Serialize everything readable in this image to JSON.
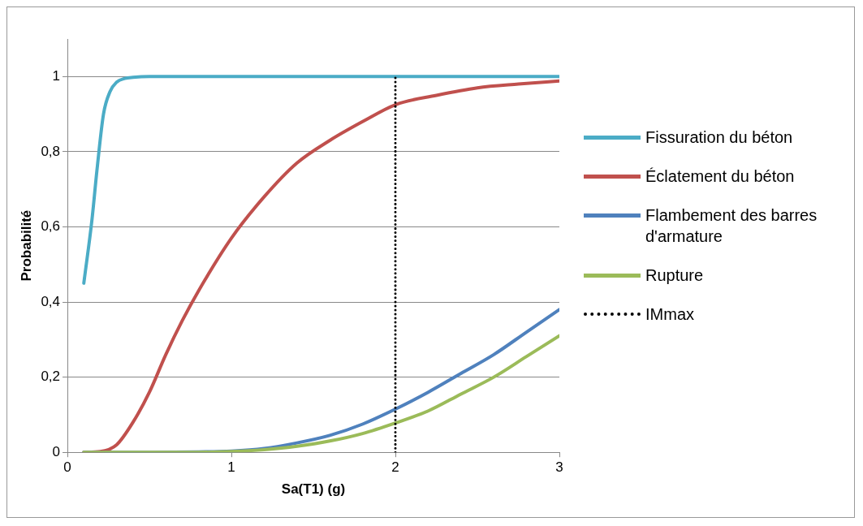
{
  "chart_data": {
    "type": "line",
    "xlabel": "Sa(T1) (g)",
    "ylabel": "Probabilité",
    "xlim": [
      0,
      3
    ],
    "xticks": [
      0,
      1,
      2,
      3
    ],
    "ylim": [
      0,
      1.1
    ],
    "yticks": [
      0,
      {
        "value": 0.2,
        "label": "0,2"
      },
      {
        "value": 0.4,
        "label": "0,4"
      },
      {
        "value": 0.6,
        "label": "0,6"
      },
      {
        "value": 0.8,
        "label": "0,8"
      },
      1
    ],
    "grid": "y",
    "legend": "right",
    "marker": "none",
    "line_style": "solid",
    "series": [
      {
        "name": "Fissuration du béton",
        "color": "#4bacc6",
        "x": [
          0.1,
          0.15,
          0.18,
          0.22,
          0.26,
          0.3,
          0.35,
          0.4,
          0.5,
          1,
          2,
          3
        ],
        "values": [
          0.45,
          0.62,
          0.75,
          0.9,
          0.96,
          0.985,
          0.995,
          0.998,
          1,
          1,
          1,
          1
        ]
      },
      {
        "name": "Éclatement du béton",
        "color": "#c0504d",
        "x": [
          0.1,
          0.2,
          0.3,
          0.4,
          0.5,
          0.6,
          0.7,
          0.8,
          1,
          1.2,
          1.4,
          1.6,
          1.8,
          2,
          2.25,
          2.5,
          2.75,
          3
        ],
        "values": [
          0,
          0.002,
          0.02,
          0.08,
          0.16,
          0.26,
          0.35,
          0.43,
          0.57,
          0.68,
          0.77,
          0.83,
          0.88,
          0.925,
          0.95,
          0.97,
          0.98,
          0.988
        ]
      },
      {
        "name": "Flambement des barres d'armature",
        "color": "#4f81bd",
        "x": [
          0.1,
          0.5,
          0.8,
          1,
          1.2,
          1.4,
          1.6,
          1.8,
          2,
          2.2,
          2.4,
          2.6,
          2.8,
          3
        ],
        "values": [
          0,
          0,
          0.001,
          0.003,
          0.01,
          0.025,
          0.045,
          0.075,
          0.115,
          0.16,
          0.21,
          0.26,
          0.32,
          0.38
        ]
      },
      {
        "name": "Rupture",
        "color": "#9bbb59",
        "x": [
          0.1,
          0.5,
          0.8,
          1,
          1.2,
          1.4,
          1.6,
          1.8,
          2,
          2.2,
          2.4,
          2.6,
          2.8,
          3
        ],
        "values": [
          0,
          0,
          0,
          0.002,
          0.007,
          0.016,
          0.03,
          0.05,
          0.078,
          0.11,
          0.155,
          0.2,
          0.255,
          0.31
        ]
      },
      {
        "name": "IMmax",
        "color": "#000000",
        "line_style": "dotted",
        "x": [
          2,
          2
        ],
        "values": [
          0,
          1
        ]
      }
    ]
  }
}
